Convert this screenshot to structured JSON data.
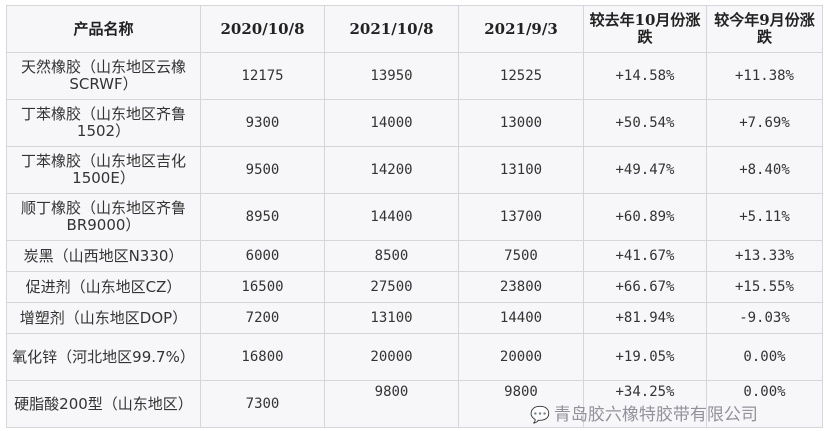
{
  "headers": [
    "产品名称",
    "2020/10/8",
    "2021/10/8",
    "2021/9/3",
    "较去年10月份涨跌",
    "较今年9月份涨跌"
  ],
  "rows": [
    [
      "天然橡胶（山东地区云橡SCRWF）",
      "12175",
      "13950",
      "12525",
      "+14.58%",
      "+11.38%"
    ],
    [
      "丁苯橡胶（山东地区齐鲁1502）",
      "9300",
      "14000",
      "13000",
      "+50.54%",
      "+7.69%"
    ],
    [
      "丁苯橡胶（山东地区吉化1500E）",
      "9500",
      "14200",
      "13100",
      "+49.47%",
      "+8.40%"
    ],
    [
      "顺丁橡胶（山东地区齐鲁BR9000）",
      "8950",
      "14400",
      "13700",
      "+60.89%",
      "+5.11%"
    ],
    [
      "炭黑（山西地区N330）",
      "6000",
      "8500",
      "7500",
      "+41.67%",
      "+13.33%"
    ],
    [
      "促进剂（山东地区CZ）",
      "16500",
      "27500",
      "23800",
      "+66.67%",
      "+15.55%"
    ],
    [
      "增塑剂（山东地区DOP）",
      "7200",
      "13100",
      "14400",
      "+81.94%",
      "-9.03%"
    ],
    [
      "氧化锌（河北地区99.7%）",
      "16800",
      "20000",
      "20000",
      "+19.05%",
      "0.00%"
    ],
    [
      "硬脂酸200型（山东地区）",
      "7300",
      "9800",
      "9800",
      "+34.25%",
      "0.00%"
    ]
  ],
  "row_heights": [
    "tall",
    "tall",
    "tall",
    "tall",
    "short",
    "short",
    "short",
    "tall",
    "tall"
  ],
  "watermark": {
    "icon": "wechat-icon",
    "text": "青岛胶六橡特胶带有限公司"
  }
}
